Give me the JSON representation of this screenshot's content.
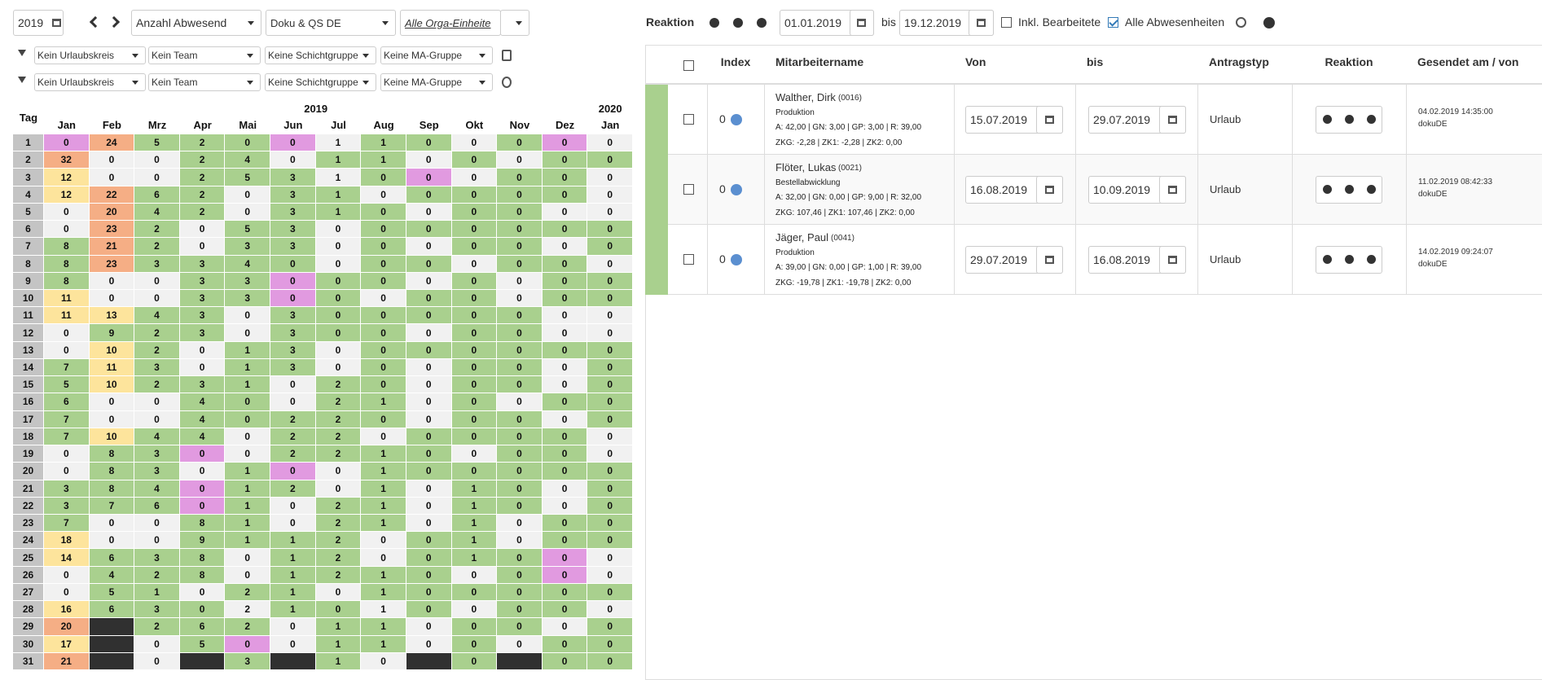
{
  "toolbar": {
    "year": "2019",
    "mode": "Anzahl Abwesend",
    "department": "Doku & QS DE",
    "orga": "Alle Orga-Einheite"
  },
  "filters": [
    [
      "Kein Urlaubskreis",
      "Kein Team",
      "Keine Schichtgruppe",
      "Keine MA-Gruppe"
    ],
    [
      "Kein Urlaubskreis",
      "Kein Team",
      "Keine Schichtgruppe",
      "Keine MA-Gruppe"
    ]
  ],
  "calendar": {
    "year_labels": [
      "2019",
      "2020"
    ],
    "day_header": "Tag",
    "months": [
      "Jan",
      "Feb",
      "Mrz",
      "Apr",
      "Mai",
      "Jun",
      "Jul",
      "Aug",
      "Sep",
      "Okt",
      "Nov",
      "Dez",
      "Jan"
    ],
    "palette": {
      "p": "#e19ae0",
      "o": "#f5ae85",
      "y": "#fde49c",
      "g": "#a9d08e",
      "w": "#f1f1f1",
      "k": "#303030"
    },
    "rows": [
      {
        "day": 1,
        "values": [
          0,
          24,
          5,
          2,
          0,
          0,
          1,
          1,
          0,
          0,
          0,
          0,
          0
        ],
        "colors": "pogggpwggwgpwp"
      },
      {
        "day": 2,
        "values": [
          32,
          0,
          0,
          2,
          4,
          0,
          1,
          1,
          0,
          0,
          0,
          0,
          0
        ],
        "colors": "owwggwggwgwgg"
      },
      {
        "day": 3,
        "values": [
          12,
          0,
          0,
          2,
          5,
          3,
          1,
          0,
          0,
          0,
          0,
          0,
          0
        ],
        "colors": "ywwgggwgpwgg"
      },
      {
        "day": 4,
        "values": [
          12,
          22,
          6,
          2,
          0,
          3,
          1,
          0,
          0,
          0,
          0,
          0,
          0
        ],
        "colors": "yoggwggwggggw"
      },
      {
        "day": 5,
        "values": [
          0,
          20,
          4,
          2,
          0,
          3,
          1,
          0,
          0,
          0,
          0,
          0,
          0
        ],
        "colors": "woggwgggwggw"
      },
      {
        "day": 6,
        "values": [
          0,
          23,
          2,
          0,
          5,
          3,
          0,
          0,
          0,
          0,
          0,
          0,
          0
        ],
        "colors": "wogwggwgggggg"
      },
      {
        "day": 7,
        "values": [
          8,
          21,
          2,
          0,
          3,
          3,
          0,
          0,
          0,
          0,
          0,
          0,
          0
        ],
        "colors": "gogwggwgwggwg"
      },
      {
        "day": 8,
        "values": [
          8,
          23,
          3,
          3,
          4,
          0,
          0,
          0,
          0,
          0,
          0,
          0,
          0
        ],
        "colors": "goggggwggwggwg"
      },
      {
        "day": 9,
        "values": [
          8,
          0,
          0,
          3,
          3,
          0,
          0,
          0,
          0,
          0,
          0,
          0,
          0
        ],
        "colors": "gwwggpggwgwgg"
      },
      {
        "day": 10,
        "values": [
          11,
          0,
          0,
          3,
          3,
          0,
          0,
          0,
          0,
          0,
          0,
          0,
          0
        ],
        "colors": "ywwggpgwggwgg"
      },
      {
        "day": 11,
        "values": [
          11,
          13,
          4,
          3,
          0,
          3,
          0,
          0,
          0,
          0,
          0,
          0,
          0
        ],
        "colors": "yyggwggggggw"
      },
      {
        "day": 12,
        "values": [
          0,
          9,
          2,
          3,
          0,
          3,
          0,
          0,
          0,
          0,
          0,
          0,
          0
        ],
        "colors": "wgggwgggwggw"
      },
      {
        "day": 13,
        "values": [
          0,
          10,
          2,
          0,
          1,
          3,
          0,
          0,
          0,
          0,
          0,
          0,
          0
        ],
        "colors": "wygwggwgggggg"
      },
      {
        "day": 14,
        "values": [
          7,
          11,
          3,
          0,
          1,
          3,
          0,
          0,
          0,
          0,
          0,
          0,
          0
        ],
        "colors": "gygwggwgwggwg"
      },
      {
        "day": 15,
        "values": [
          5,
          10,
          2,
          3,
          1,
          0,
          2,
          0,
          0,
          0,
          0,
          0,
          0
        ],
        "colors": "gygggwggwggwg"
      },
      {
        "day": 16,
        "values": [
          6,
          0,
          0,
          4,
          0,
          0,
          2,
          1,
          0,
          0,
          0,
          0,
          0
        ],
        "colors": "gwwggwggwgwgg"
      },
      {
        "day": 17,
        "values": [
          7,
          0,
          0,
          4,
          0,
          2,
          2,
          0,
          0,
          0,
          0,
          0,
          0
        ],
        "colors": "gwwgggggwggwgg"
      },
      {
        "day": 18,
        "values": [
          7,
          10,
          4,
          4,
          0,
          2,
          2,
          0,
          0,
          0,
          0,
          0,
          0
        ],
        "colors": "gyggwggwggggw"
      },
      {
        "day": 19,
        "values": [
          0,
          8,
          3,
          0,
          0,
          2,
          2,
          1,
          0,
          0,
          0,
          0,
          0
        ],
        "colors": "wggpwggggwggw"
      },
      {
        "day": 20,
        "values": [
          0,
          8,
          3,
          0,
          1,
          0,
          0,
          1,
          0,
          0,
          0,
          0,
          0
        ],
        "colors": "wggwgpwgggggg"
      },
      {
        "day": 21,
        "values": [
          3,
          8,
          4,
          0,
          1,
          2,
          0,
          1,
          0,
          1,
          0,
          0,
          0
        ],
        "colors": "gggpggwgwggwg"
      },
      {
        "day": 22,
        "values": [
          3,
          7,
          6,
          0,
          1,
          0,
          2,
          1,
          0,
          1,
          0,
          0,
          0
        ],
        "colors": "gggpgwggwggwg"
      },
      {
        "day": 23,
        "values": [
          7,
          0,
          0,
          8,
          1,
          0,
          2,
          1,
          0,
          1,
          0,
          0,
          0
        ],
        "colors": "gwwggwggwgwgg"
      },
      {
        "day": 24,
        "values": [
          18,
          0,
          0,
          9,
          1,
          1,
          2,
          0,
          0,
          1,
          0,
          0,
          0
        ],
        "colors": "ywwggggwggwgg"
      },
      {
        "day": 25,
        "values": [
          14,
          6,
          3,
          8,
          0,
          1,
          2,
          0,
          0,
          1,
          0,
          0,
          0
        ],
        "colors": "ygggwggwgggpw"
      },
      {
        "day": 26,
        "values": [
          0,
          4,
          2,
          8,
          0,
          1,
          2,
          1,
          0,
          0,
          0,
          0,
          0
        ],
        "colors": "wgggwggggwgpw"
      },
      {
        "day": 27,
        "values": [
          0,
          5,
          1,
          0,
          2,
          1,
          0,
          1,
          0,
          0,
          0,
          0,
          0
        ],
        "colors": "wggwggwgggggg"
      },
      {
        "day": 28,
        "values": [
          16,
          6,
          3,
          0,
          2,
          1,
          0,
          1,
          0,
          0,
          0,
          0,
          0
        ],
        "colors": "ygggwggwgwggwg"
      },
      {
        "day": 29,
        "values": [
          20,
          null,
          2,
          6,
          2,
          0,
          1,
          1,
          0,
          0,
          0,
          0,
          0
        ],
        "colors": "okgggwggwggwg"
      },
      {
        "day": 30,
        "values": [
          17,
          null,
          0,
          5,
          0,
          0,
          1,
          1,
          0,
          0,
          0,
          0,
          0
        ],
        "colors": "ykwgpwggwgwgg"
      },
      {
        "day": 31,
        "values": [
          21,
          null,
          0,
          null,
          3,
          null,
          1,
          0,
          null,
          0,
          null,
          0,
          0
        ],
        "colors": "okwkgkgwkgkgg"
      }
    ]
  },
  "requests": {
    "title": "Reaktion",
    "from": "01.01.2019",
    "bis": "bis",
    "to": "19.12.2019",
    "inkl": "Inkl. Bearbeitete",
    "alle": "Alle Abwesenheiten",
    "headers": [
      "Index",
      "Mitarbeitername",
      "Von",
      "bis",
      "Antragstyp",
      "Reaktion",
      "Gesendet am / von"
    ],
    "rows": [
      {
        "index": 0,
        "name": "Walther, Dirk",
        "id": "(0016)",
        "dept": "Produktion",
        "stats1": "A: 42,00 | GN: 3,00 | GP: 3,00 | R: 39,00",
        "stats2": "ZKG: -2,28 | ZK1: -2,28 | ZK2: 0,00",
        "von": "15.07.2019",
        "bis": "29.07.2019",
        "typ": "Urlaub",
        "sent": "04.02.2019 14:35:00",
        "by": "dokuDE"
      },
      {
        "index": 0,
        "name": "Flöter, Lukas",
        "id": "(0021)",
        "dept": "Bestellabwicklung",
        "stats1": "A: 32,00 | GN: 0,00 | GP: 9,00 | R: 32,00",
        "stats2": "ZKG: 107,46 | ZK1: 107,46 | ZK2: 0,00",
        "von": "16.08.2019",
        "bis": "10.09.2019",
        "typ": "Urlaub",
        "sent": "11.02.2019 08:42:33",
        "by": "dokuDE"
      },
      {
        "index": 0,
        "name": "Jäger, Paul",
        "id": "(0041)",
        "dept": "Produktion",
        "stats1": "A: 39,00 | GN: 0,00 | GP: 1,00 | R: 39,00",
        "stats2": "ZKG: -19,78 | ZK1: -19,78 | ZK2: 0,00",
        "von": "29.07.2019",
        "bis": "16.08.2019",
        "typ": "Urlaub",
        "sent": "14.02.2019 09:24:07",
        "by": "dokuDE"
      }
    ]
  }
}
